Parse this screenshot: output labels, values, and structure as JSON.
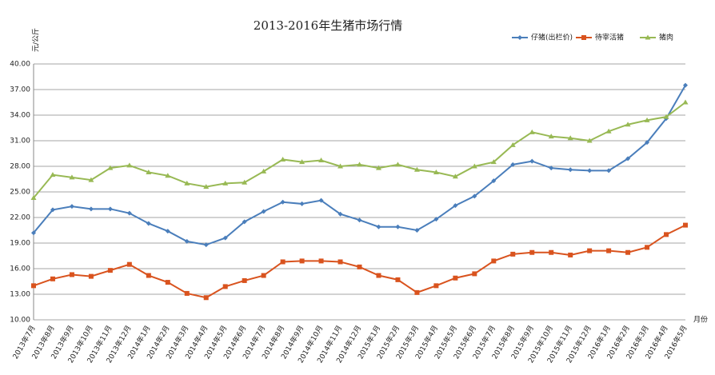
{
  "chart_data": {
    "type": "line",
    "title": "2013-2016年生猪市场行情",
    "y_label": "元/公斤",
    "x_label": "月份",
    "categories": [
      "2013年7月",
      "2013年8月",
      "2013年9月",
      "2013年10月",
      "2013年11月",
      "2013年12月",
      "2014年1月",
      "2014年2月",
      "2014年3月",
      "2014年4月",
      "2014年5月",
      "2014年6月",
      "2014年7月",
      "2014年8月",
      "2014年9月",
      "2014年10月",
      "2014年11月",
      "2014年12月",
      "2015年1月",
      "2015年2月",
      "2015年3月",
      "2015年4月",
      "2015年5月",
      "2015年6月",
      "2015年7月",
      "2015年8月",
      "2015年9月",
      "2015年10月",
      "2015年11月",
      "2015年12月",
      "2016年1月",
      "2016年2月",
      "2016年3月",
      "2016年4月",
      "2016年5月"
    ],
    "series": [
      {
        "name": "仔猪(出栏价)",
        "color": "#4a7ebb",
        "marker": "diamond",
        "values": [
          20.2,
          22.9,
          23.3,
          23.0,
          23.0,
          22.5,
          21.3,
          20.4,
          19.2,
          18.8,
          19.6,
          21.5,
          22.7,
          23.8,
          23.6,
          24.0,
          22.4,
          21.7,
          20.9,
          20.9,
          20.5,
          21.8,
          23.4,
          24.5,
          26.3,
          28.2,
          28.6,
          27.8,
          27.6,
          27.5,
          27.5,
          28.9,
          30.8,
          33.6,
          37.5
        ]
      },
      {
        "name": "待宰活猪",
        "color": "#d9531e",
        "marker": "square",
        "values": [
          14.0,
          14.8,
          15.3,
          15.1,
          15.8,
          16.5,
          15.2,
          14.4,
          13.1,
          12.6,
          13.9,
          14.6,
          15.2,
          16.8,
          16.9,
          16.9,
          16.8,
          16.2,
          15.2,
          14.7,
          13.2,
          14.0,
          14.9,
          15.4,
          16.9,
          17.7,
          17.9,
          17.9,
          17.6,
          18.1,
          18.1,
          17.9,
          18.5,
          20.0,
          21.1
        ]
      },
      {
        "name": "猪肉",
        "color": "#98b954",
        "marker": "triangle",
        "values": [
          24.3,
          27.0,
          26.7,
          26.4,
          27.8,
          28.1,
          27.3,
          26.9,
          26.0,
          25.6,
          26.0,
          26.1,
          27.4,
          28.8,
          28.5,
          28.7,
          28.0,
          28.2,
          27.8,
          28.2,
          27.6,
          27.3,
          26.8,
          28.0,
          28.5,
          30.5,
          32.0,
          31.5,
          31.3,
          31.0,
          32.1,
          32.9,
          33.4,
          33.8,
          35.5
        ]
      }
    ],
    "ylim": [
      10,
      40
    ],
    "yticks": [
      {
        "value": 10,
        "label": "10.00"
      },
      {
        "value": 13,
        "label": "13.00"
      },
      {
        "value": 16,
        "label": "16.00"
      },
      {
        "value": 19,
        "label": "19.00"
      },
      {
        "value": 22,
        "label": "22.00"
      },
      {
        "value": 25,
        "label": "25.00"
      },
      {
        "value": 28,
        "label": "28.00"
      },
      {
        "value": 31,
        "label": "31.00"
      },
      {
        "value": 34,
        "label": "34.00"
      },
      {
        "value": 37,
        "label": "37.00"
      },
      {
        "value": 40,
        "label": "40.00"
      }
    ],
    "grid": true
  }
}
